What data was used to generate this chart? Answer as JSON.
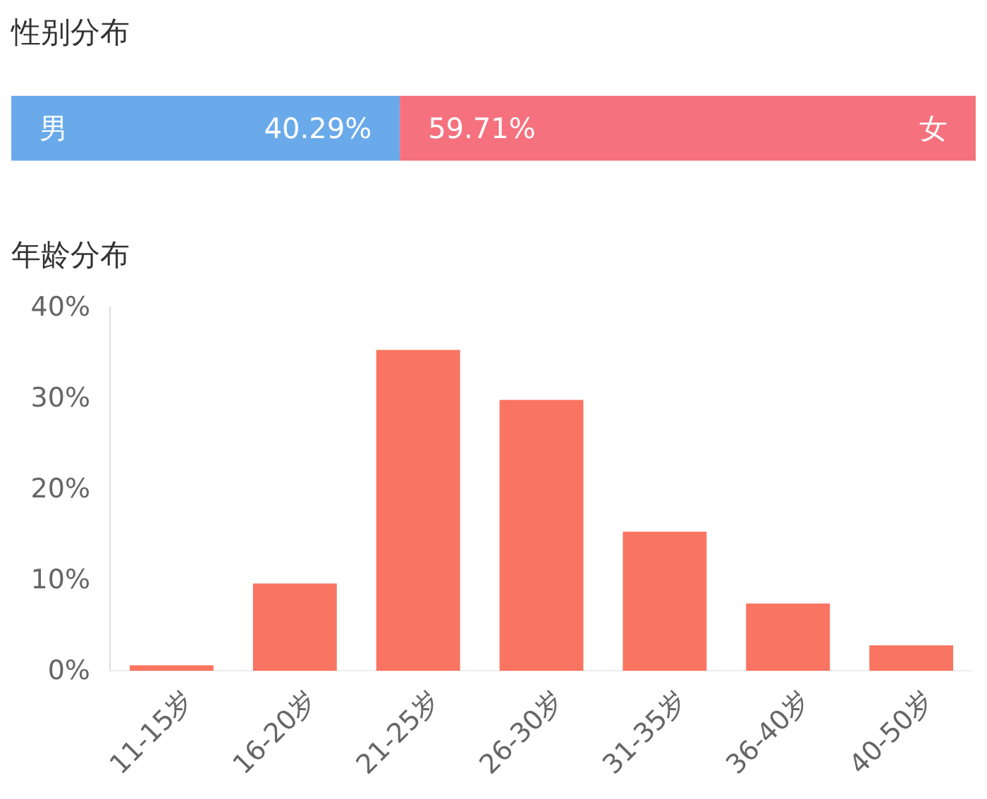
{
  "chart_data": [
    {
      "type": "bar",
      "title": "性别分布",
      "orientation": "horizontal",
      "stacked": true,
      "categories": [
        null
      ],
      "xlim": [
        0,
        100
      ],
      "tick_labels": false,
      "data_labels": true,
      "series": [
        {
          "name": "男",
          "color": "#6aaaea",
          "values": [
            40.29
          ],
          "value_labels": [
            "40.29%"
          ]
        },
        {
          "name": "女",
          "color": "#f4717d",
          "values": [
            59.71
          ],
          "value_labels": [
            "59.71%"
          ]
        }
      ]
    },
    {
      "type": "bar",
      "title": "年龄分布",
      "categories": [
        "11-15岁",
        "16-20岁",
        "21-25岁",
        "26-30岁",
        "31-35岁",
        "36-40岁",
        "40-50岁"
      ],
      "values": [
        0.6,
        9.6,
        35.3,
        29.8,
        15.3,
        7.4,
        2.8
      ],
      "color": "#f97561",
      "ylim": [
        0,
        40
      ],
      "yticks": [
        {
          "value": 0,
          "label": "0%"
        },
        {
          "value": 10,
          "label": "10%"
        },
        {
          "value": 20,
          "label": "20%"
        },
        {
          "value": 30,
          "label": "30%"
        },
        {
          "value": 40,
          "label": "40%"
        }
      ],
      "grid": false
    }
  ]
}
